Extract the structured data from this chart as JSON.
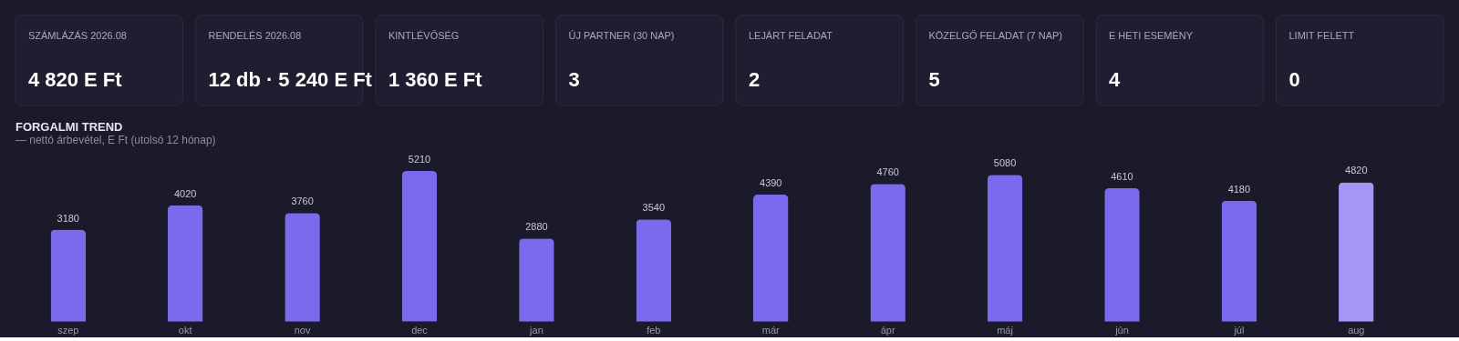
{
  "chart_data": [
    {
      "type": "other",
      "categories": [
        "SZÁMLÁZÁS 2026.08",
        "RENDELÉS 2026.08",
        "KINTLÉVŐSÉG",
        "ÚJ PARTNER (30 NAP)",
        "LEJÁRT FELADAT",
        "KÖZELGŐ FELADAT (7 NAP)",
        "E HETI ESEMÉNY",
        "LIMIT FELETT"
      ],
      "annotations": [
        "4 820 E Ft",
        "12 db · 5 240 E Ft",
        "1 360 E Ft",
        "3",
        "2",
        "5",
        "4",
        "0"
      ]
    },
    {
      "type": "bar",
      "title": "FORGALMI TREND",
      "subtitle": "— nettó árbevétel, E Ft (utolsó 12 hónap)",
      "categories": [
        "szep",
        "okt",
        "nov",
        "dec",
        "jan",
        "feb",
        "már",
        "ápr",
        "máj",
        "jún",
        "júl",
        "aug"
      ],
      "values": [
        3180,
        4020,
        3760,
        5210,
        2880,
        3540,
        4390,
        4760,
        5080,
        4610,
        4180,
        4820
      ],
      "colors": [
        "#7a6aee",
        "#7a6aee",
        "#7a6aee",
        "#7a6aee",
        "#7a6aee",
        "#7a6aee",
        "#7a6aee",
        "#7a6aee",
        "#7a6aee",
        "#7a6aee",
        "#7a6aee",
        "#a396f7"
      ],
      "data_labels": true
    }
  ]
}
